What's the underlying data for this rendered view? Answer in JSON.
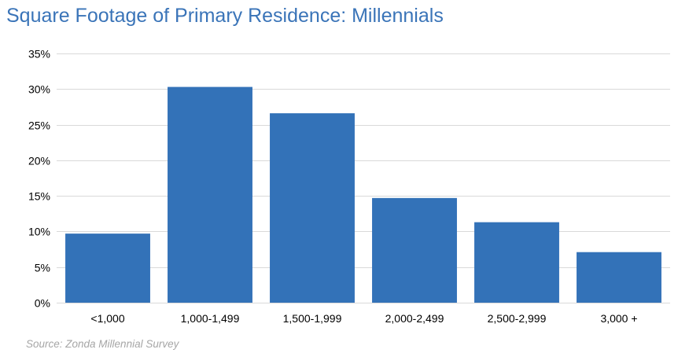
{
  "chart_data": {
    "type": "bar",
    "title": "Square Footage of Primary Residence: Millennials",
    "xlabel": "",
    "ylabel": "",
    "categories": [
      "<1,000",
      "1,000-1,499",
      "1,500-1,999",
      "2,000-2,499",
      "2,500-2,999",
      "3,000 +"
    ],
    "values": [
      9.7,
      30.3,
      26.6,
      14.7,
      11.3,
      7.1
    ],
    "ylim": [
      0,
      35
    ],
    "yticks": [
      0,
      5,
      10,
      15,
      20,
      25,
      30,
      35
    ],
    "ytick_labels": [
      "0%",
      "5%",
      "10%",
      "15%",
      "20%",
      "25%",
      "30%",
      "35%"
    ],
    "grid": true,
    "legend": "none",
    "colors": {
      "bar": "#3372b8",
      "title": "#3a74b8",
      "grid": "#d9d9d9",
      "source": "#a6a6a6"
    }
  },
  "source": "Source: Zonda Millennial Survey"
}
